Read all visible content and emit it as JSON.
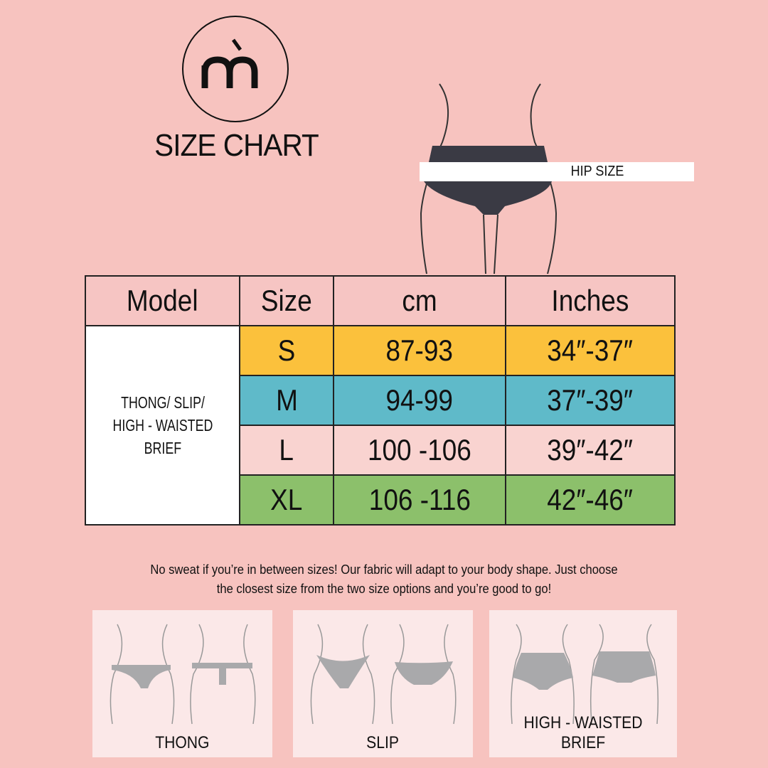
{
  "brand": {
    "logo_letters": "m̀",
    "title": "SIZE CHART"
  },
  "hero": {
    "measure_label": "HIP SIZE"
  },
  "table": {
    "headers": [
      "Model",
      "Size",
      "cm",
      "Inches"
    ],
    "model": [
      "THONG/ SLIP/",
      "HIGH - WAISTED",
      "BRIEF"
    ],
    "rows": [
      {
        "size": "S",
        "cm": "87-93",
        "inches": "34″-37″",
        "color": "#fbc13c"
      },
      {
        "size": "M",
        "cm": "94-99",
        "inches": "37″-39″",
        "color": "#5fbac9"
      },
      {
        "size": "L",
        "cm": "100 -106",
        "inches": "39″-42″",
        "color": "#f9d3d0"
      },
      {
        "size": "XL",
        "cm": "106 -116",
        "inches": "42″-46″",
        "color": "#8cc06b"
      }
    ]
  },
  "note": {
    "line1": "No sweat if you’re in between sizes! Our fabric will adapt to your body shape. Just choose",
    "line2": "the closest size from the two size options and you’re good to go!"
  },
  "styles": [
    {
      "label": "THONG"
    },
    {
      "label": "SLIP"
    },
    {
      "label": "HIGH - WAISTED BRIEF"
    }
  ]
}
